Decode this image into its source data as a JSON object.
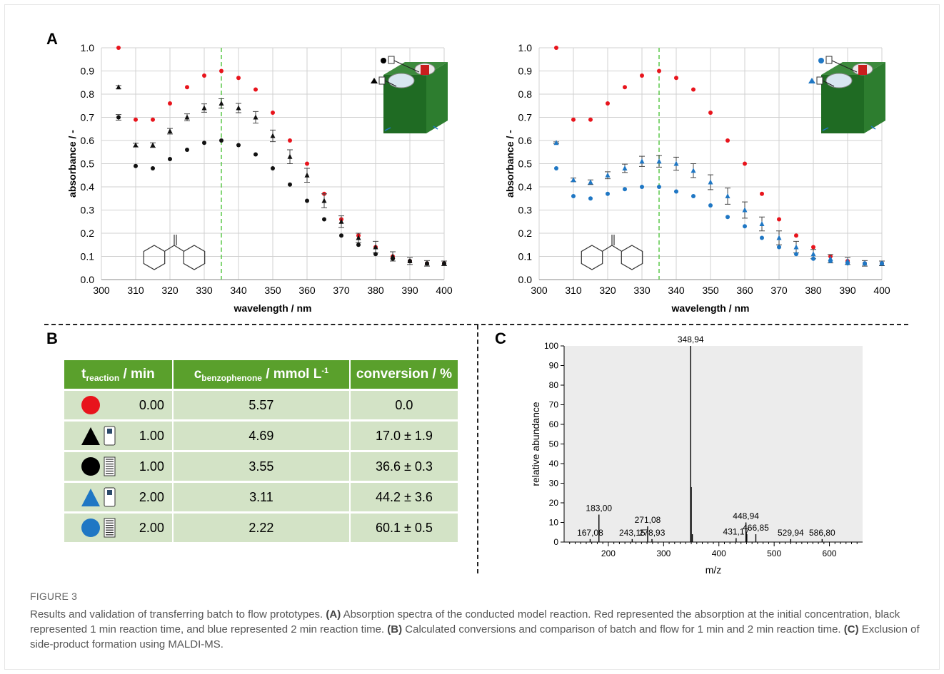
{
  "panel_labels": {
    "a": "A",
    "b": "B",
    "c": "C"
  },
  "chart_data": [
    {
      "type": "scatter",
      "panel": "A-left",
      "xlabel": "wavelength / nm",
      "ylabel": "absorbance / -",
      "xlim": [
        300,
        400
      ],
      "ylim": [
        0,
        1.0
      ],
      "xticks": [
        300,
        310,
        320,
        330,
        340,
        350,
        360,
        370,
        380,
        390,
        400
      ],
      "yticks": [
        "0.0",
        "0.1",
        "0.2",
        "0.3",
        "0.4",
        "0.5",
        "0.6",
        "0.7",
        "0.8",
        "0.9",
        "1.0"
      ],
      "vline_x": 335,
      "grid": true,
      "series": [
        {
          "color": "#e8141c",
          "marker": "circle",
          "x": [
            305,
            310,
            315,
            320,
            325,
            330,
            335,
            340,
            345,
            350,
            355,
            360,
            365,
            370,
            375,
            380,
            385,
            390,
            395,
            400
          ],
          "y": [
            1.0,
            0.69,
            0.69,
            0.76,
            0.83,
            0.88,
            0.9,
            0.87,
            0.82,
            0.72,
            0.6,
            0.5,
            0.37,
            0.26,
            0.19,
            0.14,
            0.1,
            0.08,
            0.07,
            0.07
          ]
        },
        {
          "color": "#111111",
          "marker": "triangle",
          "x": [
            305,
            310,
            315,
            320,
            325,
            330,
            335,
            340,
            345,
            350,
            355,
            360,
            365,
            370,
            375,
            380,
            385,
            390,
            395,
            400
          ],
          "y": [
            0.83,
            0.58,
            0.58,
            0.64,
            0.7,
            0.74,
            0.76,
            0.74,
            0.7,
            0.62,
            0.53,
            0.45,
            0.34,
            0.25,
            0.18,
            0.14,
            0.1,
            0.08,
            0.07,
            0.07
          ],
          "err": [
            0.007,
            0.008,
            0.01,
            0.012,
            0.015,
            0.018,
            0.02,
            0.02,
            0.025,
            0.025,
            0.03,
            0.03,
            0.03,
            0.025,
            0.02,
            0.025,
            0.02,
            0.015,
            0.012,
            0.01
          ]
        },
        {
          "color": "#111111",
          "marker": "circle",
          "x": [
            305,
            310,
            315,
            320,
            325,
            330,
            335,
            340,
            345,
            350,
            355,
            360,
            365,
            370,
            375,
            380,
            385,
            390,
            395,
            400
          ],
          "y": [
            0.7,
            0.49,
            0.48,
            0.52,
            0.56,
            0.59,
            0.6,
            0.58,
            0.54,
            0.48,
            0.41,
            0.34,
            0.26,
            0.19,
            0.15,
            0.11,
            0.09,
            0.08,
            0.07,
            0.07
          ],
          "err": [
            0.012,
            0,
            0,
            0,
            0,
            0,
            0,
            0,
            0,
            0,
            0,
            0,
            0,
            0,
            0,
            0,
            0,
            0,
            0,
            0
          ]
        }
      ]
    },
    {
      "type": "scatter",
      "panel": "A-right",
      "xlabel": "wavelength / nm",
      "ylabel": "absorbance / -",
      "xlim": [
        300,
        400
      ],
      "ylim": [
        0,
        1.0
      ],
      "xticks": [
        300,
        310,
        320,
        330,
        340,
        350,
        360,
        370,
        380,
        390,
        400
      ],
      "yticks": [
        "0.0",
        "0.1",
        "0.2",
        "0.3",
        "0.4",
        "0.5",
        "0.6",
        "0.7",
        "0.8",
        "0.9",
        "1.0"
      ],
      "vline_x": 335,
      "grid": true,
      "series": [
        {
          "color": "#e8141c",
          "marker": "circle",
          "x": [
            305,
            310,
            315,
            320,
            325,
            330,
            335,
            340,
            345,
            350,
            355,
            360,
            365,
            370,
            375,
            380,
            385,
            390,
            395,
            400
          ],
          "y": [
            1.0,
            0.69,
            0.69,
            0.76,
            0.83,
            0.88,
            0.9,
            0.87,
            0.82,
            0.72,
            0.6,
            0.5,
            0.37,
            0.26,
            0.19,
            0.14,
            0.1,
            0.08,
            0.07,
            0.07
          ]
        },
        {
          "color": "#1f77c4",
          "marker": "triangle",
          "x": [
            305,
            310,
            315,
            320,
            325,
            330,
            335,
            340,
            345,
            350,
            355,
            360,
            365,
            370,
            375,
            380,
            385,
            390,
            395,
            400
          ],
          "y": [
            0.59,
            0.43,
            0.42,
            0.45,
            0.48,
            0.51,
            0.51,
            0.5,
            0.47,
            0.42,
            0.36,
            0.3,
            0.24,
            0.18,
            0.14,
            0.11,
            0.09,
            0.08,
            0.07,
            0.07
          ],
          "err": [
            0.004,
            0.008,
            0.01,
            0.015,
            0.018,
            0.022,
            0.025,
            0.028,
            0.03,
            0.032,
            0.035,
            0.035,
            0.03,
            0.03,
            0.025,
            0.02,
            0.018,
            0.015,
            0.012,
            0.01
          ]
        },
        {
          "color": "#1f77c4",
          "marker": "circle",
          "x": [
            305,
            310,
            315,
            320,
            325,
            330,
            335,
            340,
            345,
            350,
            355,
            360,
            365,
            370,
            375,
            380,
            385,
            390,
            395,
            400
          ],
          "y": [
            0.48,
            0.36,
            0.35,
            0.37,
            0.39,
            0.4,
            0.4,
            0.38,
            0.36,
            0.32,
            0.27,
            0.23,
            0.18,
            0.14,
            0.11,
            0.09,
            0.08,
            0.07,
            0.07,
            0.07
          ]
        }
      ]
    },
    {
      "type": "bar",
      "panel": "C",
      "xlabel": "m/z",
      "ylabel": "relative abundance",
      "xlim": [
        120,
        660
      ],
      "ylim": [
        0,
        100
      ],
      "xticks": [
        200,
        300,
        400,
        500,
        600
      ],
      "yticks": [
        0,
        10,
        20,
        30,
        40,
        50,
        60,
        70,
        80,
        90,
        100
      ],
      "peaks": [
        {
          "x": 167.08,
          "y": 1.5
        },
        {
          "x": 183.0,
          "y": 14
        },
        {
          "x": 243.15,
          "y": 1.5
        },
        {
          "x": 271.08,
          "y": 8
        },
        {
          "x": 278.93,
          "y": 1.5
        },
        {
          "x": 348.94,
          "y": 100
        },
        {
          "x": 350.0,
          "y": 28
        },
        {
          "x": 352.0,
          "y": 4
        },
        {
          "x": 431.17,
          "y": 2
        },
        {
          "x": 448.94,
          "y": 10
        },
        {
          "x": 450.5,
          "y": 4
        },
        {
          "x": 466.85,
          "y": 4
        },
        {
          "x": 529.94,
          "y": 1.5
        },
        {
          "x": 586.8,
          "y": 1.5
        }
      ],
      "labels": [
        {
          "text": "167,08",
          "x": 167.08,
          "y": 1.5
        },
        {
          "text": "183,00",
          "x": 183.0,
          "y": 14
        },
        {
          "text": "243,15",
          "x": 243.15,
          "y": 1.5
        },
        {
          "text": "271,08",
          "x": 271.08,
          "y": 8
        },
        {
          "text": "278,93",
          "x": 278.93,
          "y": 1.5
        },
        {
          "text": "348,94",
          "x": 348.94,
          "y": 100
        },
        {
          "text": "431,17",
          "x": 431.17,
          "y": 2
        },
        {
          "text": "448,94",
          "x": 448.94,
          "y": 10
        },
        {
          "text": "466,85",
          "x": 466.85,
          "y": 4
        },
        {
          "text": "529,94",
          "x": 529.94,
          "y": 1.5
        },
        {
          "text": "586,80",
          "x": 586.8,
          "y": 1.5
        }
      ]
    }
  ],
  "table": {
    "headers": [
      {
        "main": "t",
        "sub": "reaction",
        "rest": " / min"
      },
      {
        "main": "c",
        "sub": "benzophenone",
        "rest": " / mmol L",
        "sup": "-1"
      },
      {
        "main": "conversion / %"
      }
    ],
    "rows": [
      {
        "symbol": "circle",
        "color": "#e8141c",
        "device": "none",
        "time": "0.00",
        "conc": "5.57",
        "conv": "0.0"
      },
      {
        "symbol": "triangle",
        "color": "#000000",
        "device": "cartridge",
        "time": "1.00",
        "conc": "4.69",
        "conv": "17.0 ± 1.9"
      },
      {
        "symbol": "circle",
        "color": "#000000",
        "device": "coil",
        "time": "1.00",
        "conc": "3.55",
        "conv": "36.6 ± 0.3"
      },
      {
        "symbol": "triangle",
        "color": "#1f77c4",
        "device": "cartridge",
        "time": "2.00",
        "conc": "3.11",
        "conv": "44.2 ± 3.6"
      },
      {
        "symbol": "circle",
        "color": "#1f77c4",
        "device": "coil",
        "time": "2.00",
        "conc": "2.22",
        "conv": "60.1 ± 0.5"
      }
    ]
  },
  "caption": {
    "figure_label": "FIGURE 3",
    "title": "Results and validation of transferring batch to flow prototypes.",
    "a_tag": "(A)",
    "a_text": " Absorption spectra of the conducted model reaction. Red represented the absorption at the initial concentration, black represented 1 min reaction time, and blue represented 2 min reaction time.",
    "b_tag": "(B)",
    "b_text": " Calculated conversions and comparison of batch and flow for 1 min and 2 min reaction time.",
    "c_tag": "(C)",
    "c_text": " Exclusion of side-product formation using MALDI-MS."
  }
}
